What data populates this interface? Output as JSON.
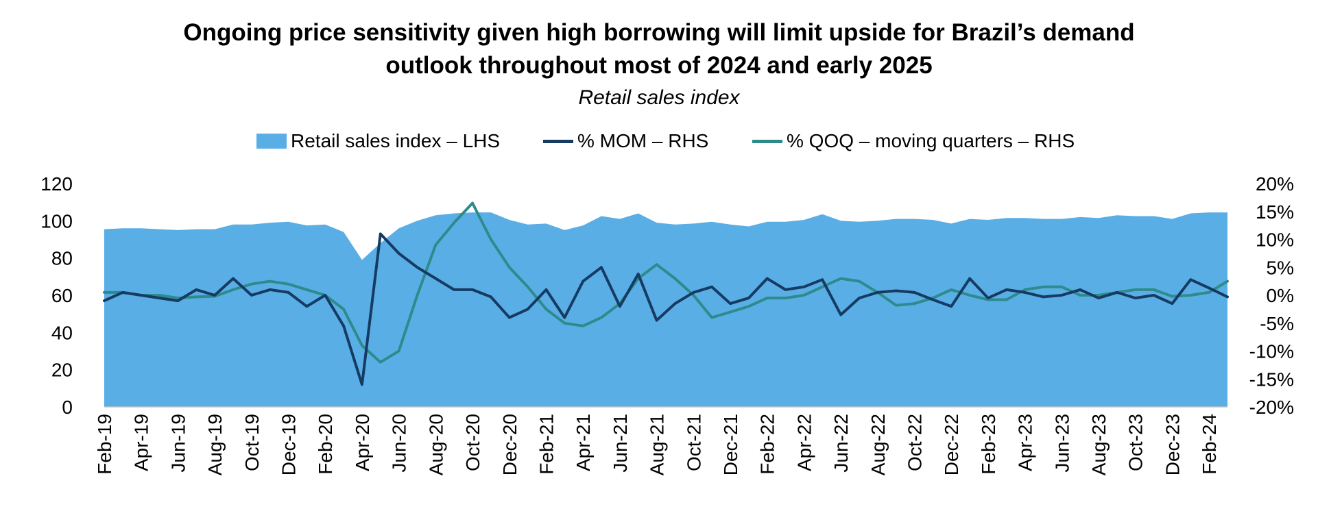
{
  "chart_data": {
    "type": "area+line",
    "title": "Ongoing price sensitivity given high borrowing will limit upside for Brazil’s demand",
    "title_line2": "outlook throughout most of 2024 and early 2025",
    "subtitle": "Retail sales index",
    "legend": {
      "placement": "top-center",
      "items": [
        "Retail sales index – LHS",
        "% MOM – RHS",
        "% QOQ – moving quarters – RHS"
      ]
    },
    "colors": {
      "area": "#5aaee6",
      "mom": "#163b63",
      "qoq": "#2e8b8c"
    },
    "y_left": {
      "lim": [
        0,
        120
      ],
      "ticks": [
        "0",
        "20",
        "40",
        "60",
        "80",
        "100",
        "120"
      ]
    },
    "y_right": {
      "lim": [
        -20,
        20
      ],
      "ticks": [
        "-20%",
        "-15%",
        "-10%",
        "-5%",
        "0%",
        "5%",
        "10%",
        "15%",
        "20%"
      ]
    },
    "x": [
      "Feb-19",
      "Mar-19",
      "Apr-19",
      "May-19",
      "Jun-19",
      "Jul-19",
      "Aug-19",
      "Sep-19",
      "Oct-19",
      "Nov-19",
      "Dec-19",
      "Jan-20",
      "Feb-20",
      "Mar-20",
      "Apr-20",
      "May-20",
      "Jun-20",
      "Jul-20",
      "Aug-20",
      "Sep-20",
      "Oct-20",
      "Nov-20",
      "Dec-20",
      "Jan-21",
      "Feb-21",
      "Mar-21",
      "Apr-21",
      "May-21",
      "Jun-21",
      "Jul-21",
      "Aug-21",
      "Sep-21",
      "Oct-21",
      "Nov-21",
      "Dec-21",
      "Jan-22",
      "Feb-22",
      "Mar-22",
      "Apr-22",
      "May-22",
      "Jun-22",
      "Jul-22",
      "Aug-22",
      "Sep-22",
      "Oct-22",
      "Nov-22",
      "Dec-22",
      "Jan-23",
      "Feb-23",
      "Mar-23",
      "Apr-23",
      "May-23",
      "Jun-23",
      "Jul-23",
      "Aug-23",
      "Sep-23",
      "Oct-23",
      "Nov-23",
      "Dec-23",
      "Jan-24",
      "Feb-24",
      "Mar-24"
    ],
    "x_tick_labels": [
      "Feb-19",
      "Apr-19",
      "Jun-19",
      "Aug-19",
      "Oct-19",
      "Dec-19",
      "Feb-20",
      "Apr-20",
      "Jun-20",
      "Aug-20",
      "Oct-20",
      "Dec-20",
      "Feb-21",
      "Apr-21",
      "Jun-21",
      "Aug-21",
      "Oct-21",
      "Dec-21",
      "Feb-22",
      "Apr-22",
      "Jun-22",
      "Aug-22",
      "Oct-22",
      "Dec-22",
      "Feb-23",
      "Apr-23",
      "Jun-23",
      "Aug-23",
      "Oct-23",
      "Dec-23",
      "Feb-24"
    ],
    "series": [
      {
        "name": "Retail sales index – LHS",
        "axis": "left",
        "type": "area",
        "values": [
          95.5,
          96,
          96,
          95.5,
          95,
          95.5,
          95.5,
          98,
          98,
          99,
          99.5,
          97.5,
          98,
          94,
          79,
          88,
          96,
          100,
          103,
          104,
          104.5,
          104.5,
          100.5,
          98,
          98.5,
          95,
          97.5,
          102.5,
          101,
          104,
          99,
          98,
          98.5,
          99.5,
          98,
          97,
          99.5,
          99.5,
          100.5,
          103.5,
          100,
          99.5,
          100,
          101,
          101,
          100.5,
          98.5,
          101,
          100.5,
          101.5,
          101.5,
          101,
          101,
          102,
          101.5,
          103,
          102.5,
          102.5,
          101,
          104,
          104.5,
          104.5
        ]
      },
      {
        "name": "% MOM – RHS",
        "axis": "right",
        "type": "line",
        "values": [
          -1,
          0.5,
          0,
          -0.5,
          -1,
          1,
          0,
          3,
          0,
          1,
          0.5,
          -2,
          0,
          -5.5,
          -16,
          11,
          7.5,
          5,
          3,
          1,
          1,
          -0.3,
          -4,
          -2.5,
          1,
          -4,
          2.5,
          5,
          -2,
          3.8,
          -4.5,
          -1.5,
          0.5,
          1.5,
          -1.5,
          -0.5,
          3,
          1,
          1.5,
          2.8,
          -3.5,
          -0.5,
          0.5,
          0.8,
          0.5,
          -0.8,
          -2,
          3,
          -0.5,
          1,
          0.5,
          -0.3,
          0,
          1,
          -0.5,
          0.5,
          -0.5,
          0,
          -1.5,
          2.8,
          1.3,
          -0.3
        ]
      },
      {
        "name": "% QOQ – moving quarters – RHS",
        "axis": "right",
        "type": "line",
        "values": [
          0.5,
          0.5,
          0,
          0,
          -0.5,
          -0.3,
          -0.2,
          1,
          2,
          2.5,
          2,
          1,
          0,
          -2.5,
          -9,
          -12,
          -10,
          0,
          9,
          13,
          16.5,
          10,
          5,
          1.5,
          -2.5,
          -5,
          -5.5,
          -4,
          -1.5,
          3,
          5.5,
          3,
          0,
          -4,
          -3,
          -2,
          -0.5,
          -0.5,
          0,
          1.5,
          3,
          2.5,
          0.5,
          -1.8,
          -1.5,
          -0.5,
          1,
          0,
          -0.8,
          -0.8,
          1,
          1.5,
          1.5,
          0,
          0,
          0.5,
          1,
          1,
          -0.2,
          0,
          0.5,
          2.5
        ]
      }
    ]
  }
}
